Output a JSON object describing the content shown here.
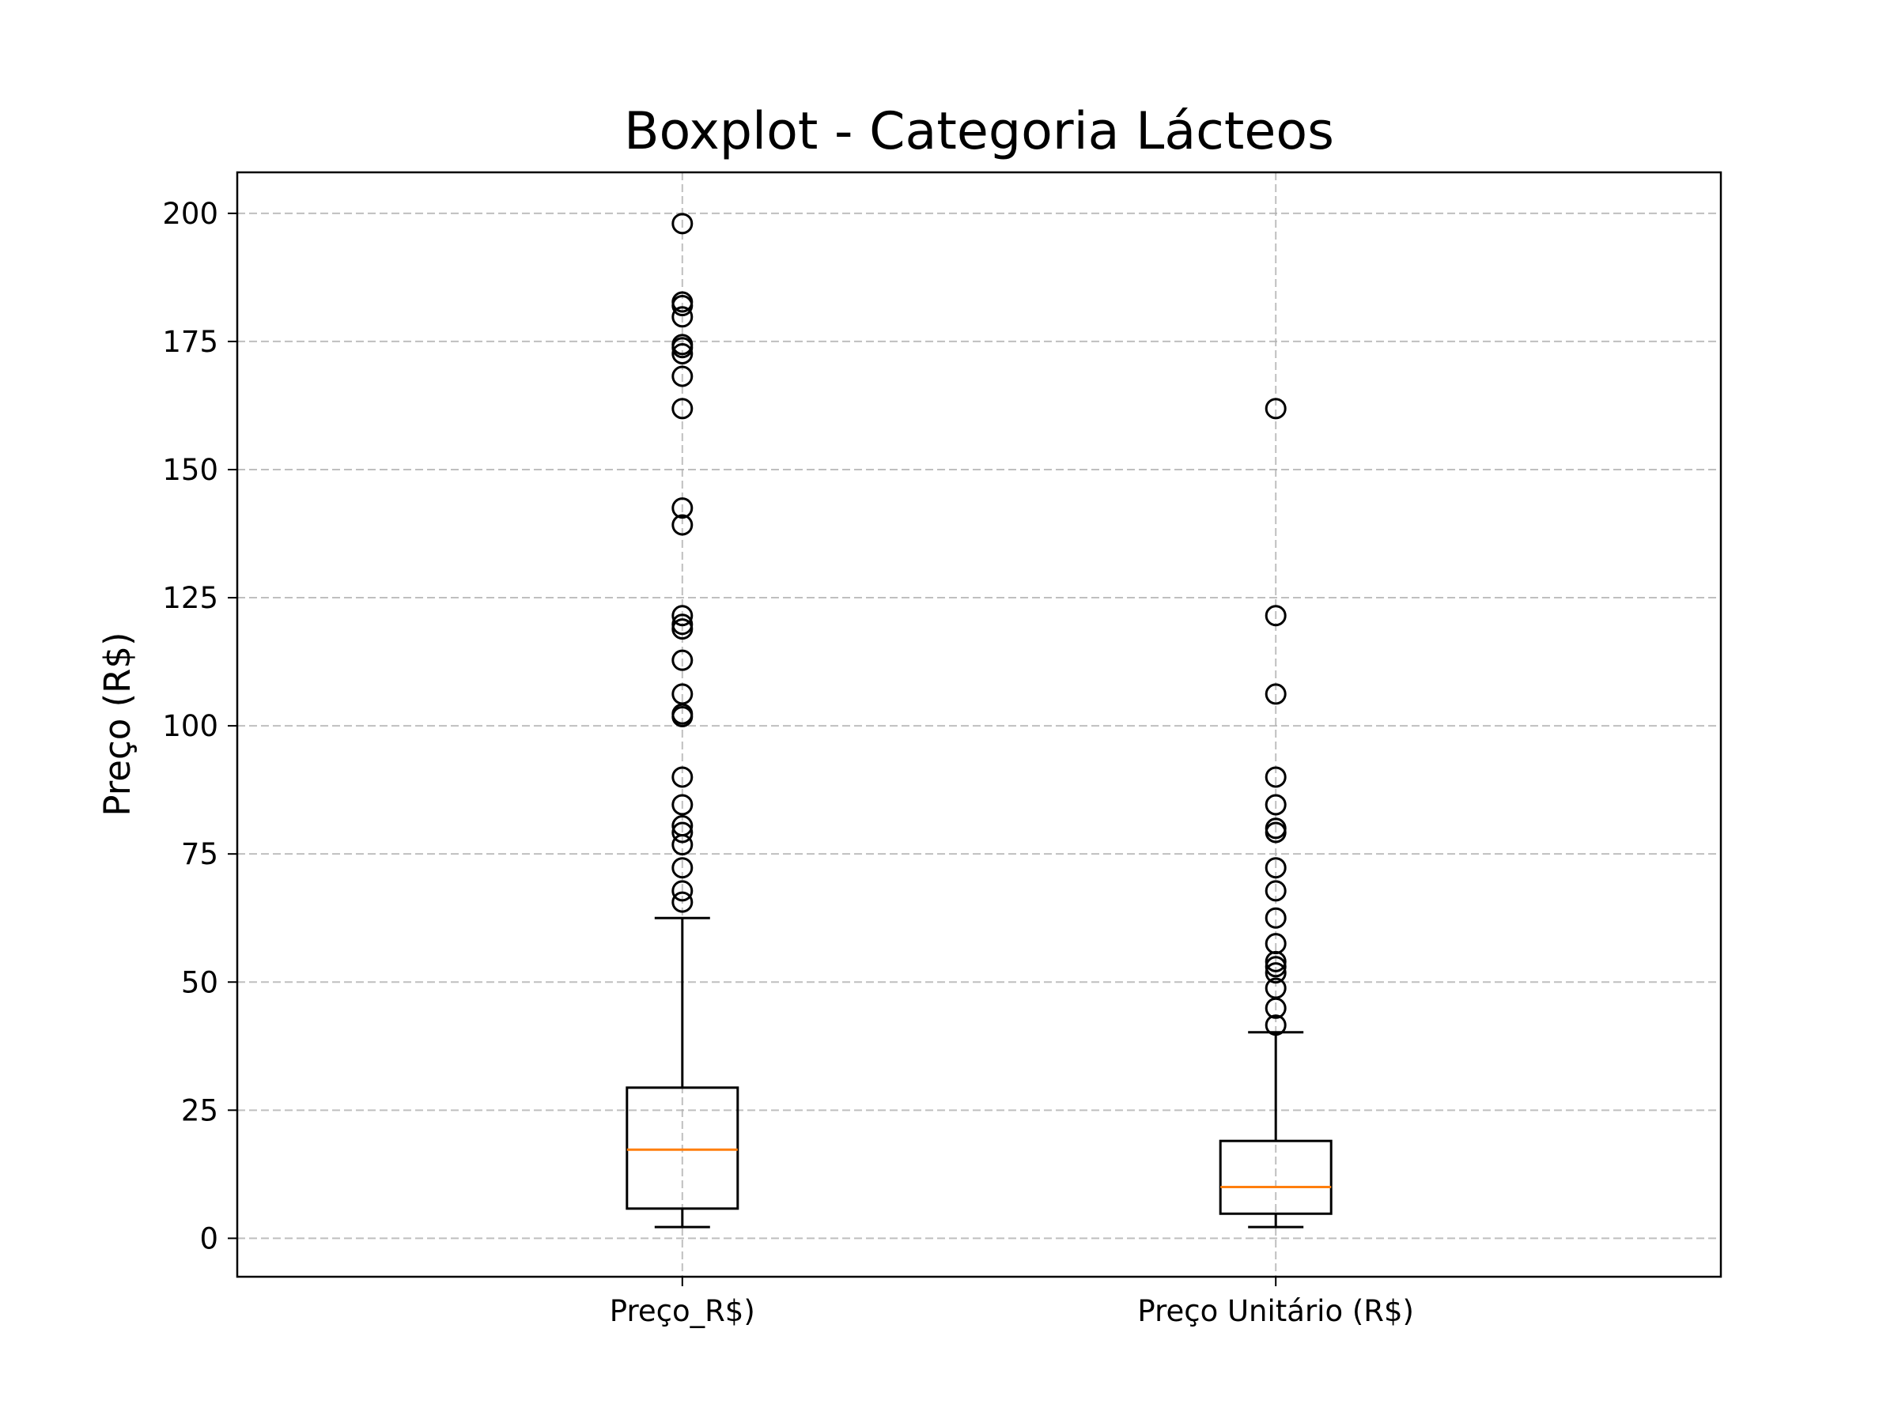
{
  "chart_data": {
    "type": "boxplot",
    "title": "Boxplot - Categoria Lácteos",
    "xlabel": "",
    "ylabel": "Preço (R$)",
    "ylim": [
      -7.5,
      208
    ],
    "yticks": [
      0,
      25,
      50,
      75,
      100,
      125,
      150,
      175,
      200
    ],
    "grid": true,
    "categories": [
      "Preço_R$)",
      "Preço Unitário (R$)"
    ],
    "series": [
      {
        "whisker_low": 2.2,
        "q1": 5.8,
        "median": 17.3,
        "q3": 29.4,
        "whisker_high": 62.5,
        "outliers": [
          65.6,
          67.8,
          72.3,
          76.8,
          79.2,
          80.5,
          84.6,
          90.0,
          101.8,
          102.3,
          106.2,
          112.8,
          118.9,
          119.8,
          121.5,
          139.2,
          142.5,
          161.9,
          168.2,
          172.6,
          173.8,
          174.4,
          179.8,
          182.0,
          182.7,
          198.0
        ]
      },
      {
        "whisker_low": 2.2,
        "q1": 4.8,
        "median": 10.0,
        "q3": 19.0,
        "whisker_high": 40.2,
        "outliers": [
          41.6,
          44.9,
          48.8,
          51.8,
          53.0,
          54.0,
          57.5,
          62.5,
          67.8,
          72.3,
          79.2,
          80.0,
          84.6,
          90.0,
          106.2,
          121.5,
          161.9
        ]
      }
    ],
    "colors": {
      "box": "#000000",
      "median": "#ff7f0e",
      "grid": "#b0b0b0",
      "outlier_edge": "#000000"
    }
  }
}
